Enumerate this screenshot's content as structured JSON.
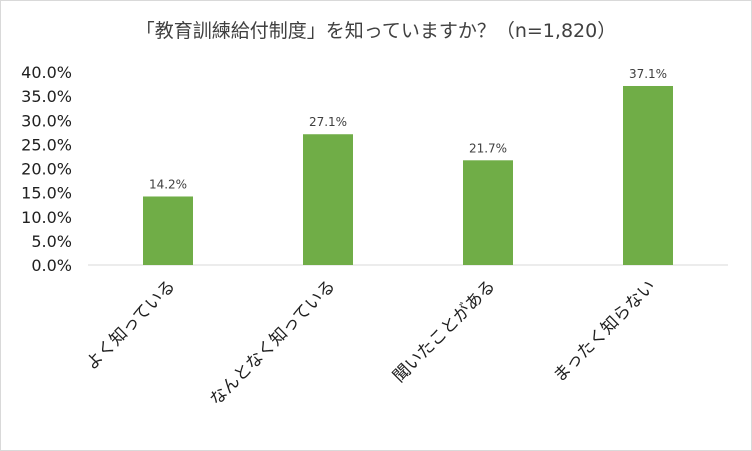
{
  "chart_data": {
    "type": "bar",
    "title": "「教育訓練給付制度」を知っていますか？（n=1,820）",
    "categories": [
      "よく知っている",
      "なんとなく知っている",
      "聞いたことがある",
      "まったく知らない"
    ],
    "values": [
      14.2,
      27.1,
      21.7,
      37.1
    ],
    "data_labels": [
      "14.2%",
      "27.1%",
      "21.7%",
      "37.1%"
    ],
    "ylim": [
      0,
      40
    ],
    "yticks": [
      "0.0%",
      "5.0%",
      "10.0%",
      "15.0%",
      "20.0%",
      "25.0%",
      "30.0%",
      "35.0%",
      "40.0%"
    ],
    "ytick_values": [
      0,
      5,
      10,
      15,
      20,
      25,
      30,
      35,
      40
    ],
    "xlabel": "",
    "ylabel": "",
    "grid": false,
    "legend": "none",
    "bar_color": "#70ad47"
  }
}
